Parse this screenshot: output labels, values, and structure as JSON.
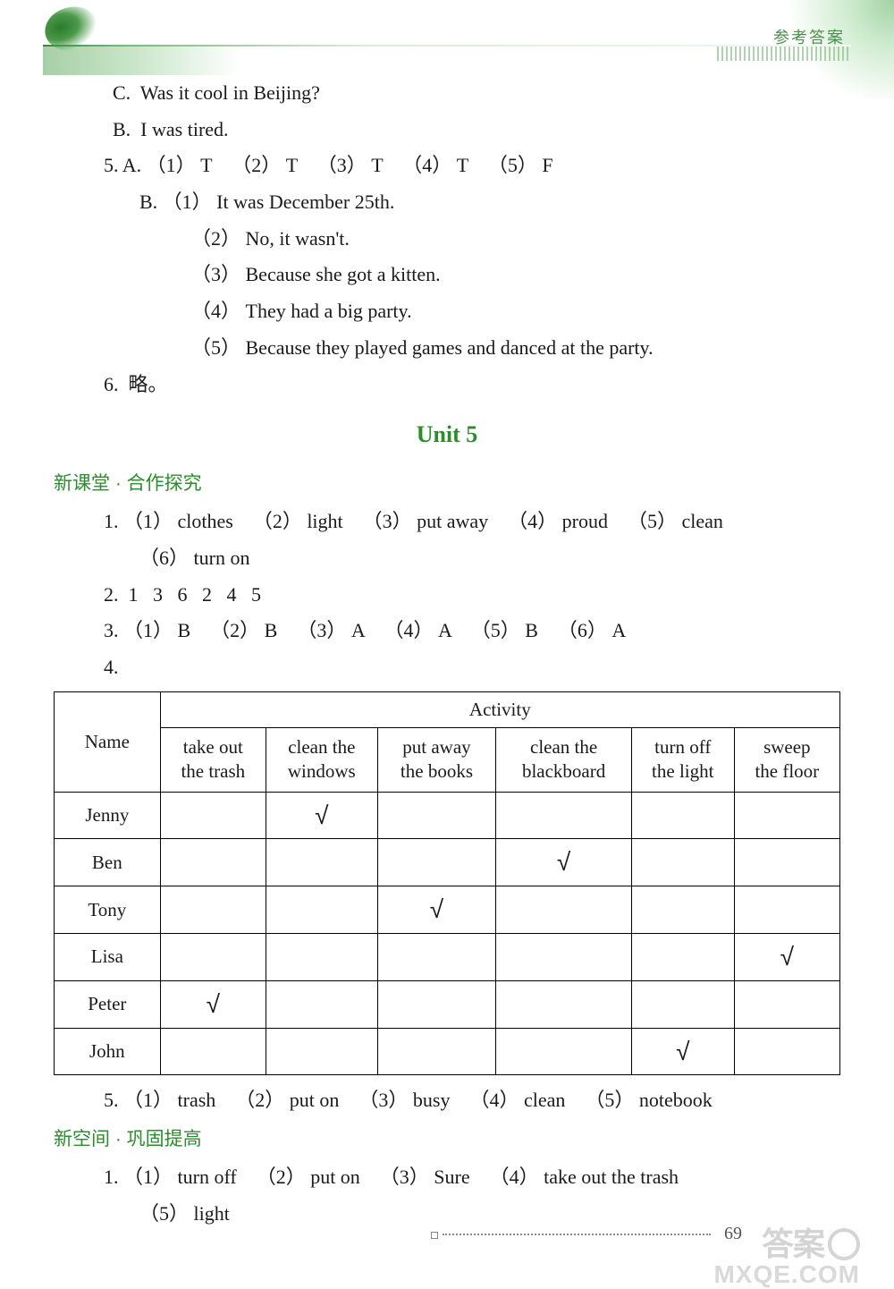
{
  "header": {
    "label": "参考答案"
  },
  "prelines": {
    "c_line": "C.  Was it cool in Beijing?",
    "b_line": "B.  I was tired.",
    "q5a": "5. A. （1） T    （2） T    （3） T    （4） T    （5） F",
    "q5b_head": "B. （1） It was December 25th.",
    "q5b_2": "（2） No, it wasn't.",
    "q5b_3": "（3） Because she got a kitten.",
    "q5b_4": "（4） They had a big party.",
    "q5b_5": "（5） Because they played games and danced at the party.",
    "q6": "6.  略。"
  },
  "unit_title": "Unit 5",
  "section1": {
    "label": "新课堂 · 合作探究",
    "lines": {
      "l1a": "1. （1） clothes    （2） light    （3） put away    （4） proud    （5） clean",
      "l1b": "（6） turn on",
      "l2": "2.  1   3   6   2   4   5",
      "l3": "3. （1） B    （2） B    （3） A    （4） A    （5） B    （6） A",
      "l4": "4.",
      "l5": "5. （1） trash    （2） put on    （3） busy    （4） clean    （5） notebook"
    }
  },
  "table": {
    "name_header": "Name",
    "activity_header": "Activity",
    "columns": [
      "take out\nthe trash",
      "clean the\nwindows",
      "put away\nthe books",
      "clean the\nblackboard",
      "turn off\nthe light",
      "sweep\nthe floor"
    ],
    "rows": [
      {
        "name": "Jenny",
        "ticks": [
          false,
          true,
          false,
          false,
          false,
          false
        ]
      },
      {
        "name": "Ben",
        "ticks": [
          false,
          false,
          false,
          true,
          false,
          false
        ]
      },
      {
        "name": "Tony",
        "ticks": [
          false,
          false,
          true,
          false,
          false,
          false
        ]
      },
      {
        "name": "Lisa",
        "ticks": [
          false,
          false,
          false,
          false,
          false,
          true
        ]
      },
      {
        "name": "Peter",
        "ticks": [
          true,
          false,
          false,
          false,
          false,
          false
        ]
      },
      {
        "name": "John",
        "ticks": [
          false,
          false,
          false,
          false,
          true,
          false
        ]
      }
    ],
    "tick_symbol": "√"
  },
  "section2": {
    "label": "新空间 · 巩固提高",
    "lines": {
      "l1a": "1. （1） turn off    （2） put on    （3） Sure    （4） take out the trash",
      "l1b": "（5） light"
    }
  },
  "page_number": "69",
  "watermark1": "答案",
  "watermark2": "MXQE.COM",
  "colors": {
    "section_green": "#2d8c2d",
    "text": "#1a1a1a",
    "border": "#000000",
    "background": "#ffffff"
  },
  "fontsizes": {
    "body_pt": 16,
    "unit_title_pt": 19,
    "section_pt": 15
  }
}
